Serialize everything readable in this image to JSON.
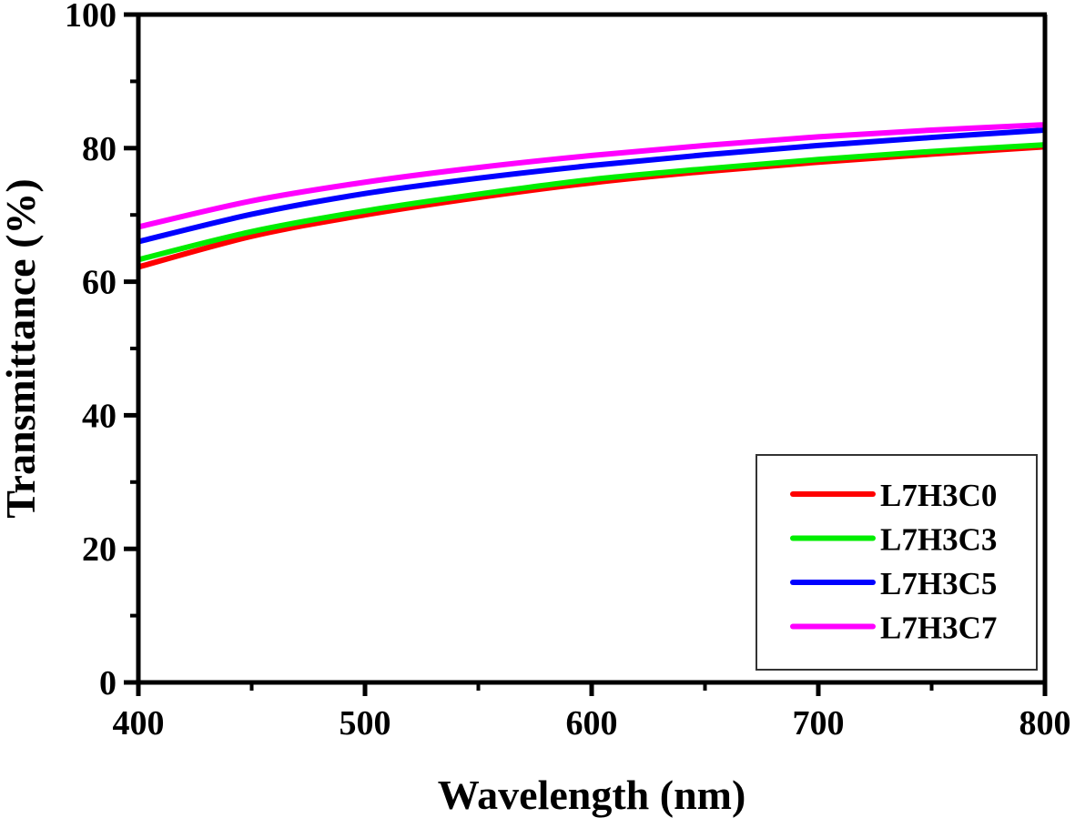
{
  "chart_data": {
    "type": "line",
    "title": "",
    "xlabel": "Wavelength (nm)",
    "ylabel": "Transmittance (%)",
    "xlim": [
      400,
      800
    ],
    "ylim": [
      0,
      100
    ],
    "x_ticks": [
      400,
      500,
      600,
      700,
      800
    ],
    "x_tick_labels": [
      "400",
      "500",
      "600",
      "700",
      "800"
    ],
    "x_minor_ticks": [
      450,
      550,
      650,
      750
    ],
    "y_ticks": [
      0,
      20,
      40,
      60,
      80,
      100
    ],
    "y_tick_labels": [
      "0",
      "20",
      "40",
      "60",
      "80",
      "100"
    ],
    "y_minor_ticks": [
      10,
      30,
      50,
      70,
      90
    ],
    "grid": false,
    "legend_position": "bottom-right",
    "x": [
      400,
      450,
      500,
      550,
      600,
      650,
      700,
      750,
      800
    ],
    "series": [
      {
        "name": "L7H3C0",
        "color": "#ff0000",
        "values": [
          62.2,
          66.8,
          70.0,
          72.6,
          74.8,
          76.5,
          77.9,
          79.1,
          80.2
        ]
      },
      {
        "name": "L7H3C3",
        "color": "#00ee00",
        "values": [
          63.3,
          67.5,
          70.6,
          73.1,
          75.3,
          76.9,
          78.3,
          79.5,
          80.5
        ]
      },
      {
        "name": "L7H3C5",
        "color": "#0000ff",
        "values": [
          66.0,
          70.1,
          73.2,
          75.5,
          77.4,
          79.0,
          80.4,
          81.6,
          82.7
        ]
      },
      {
        "name": "L7H3C7",
        "color": "#ff00ff",
        "values": [
          68.2,
          72.1,
          74.9,
          77.1,
          78.9,
          80.4,
          81.7,
          82.7,
          83.5
        ]
      }
    ]
  }
}
